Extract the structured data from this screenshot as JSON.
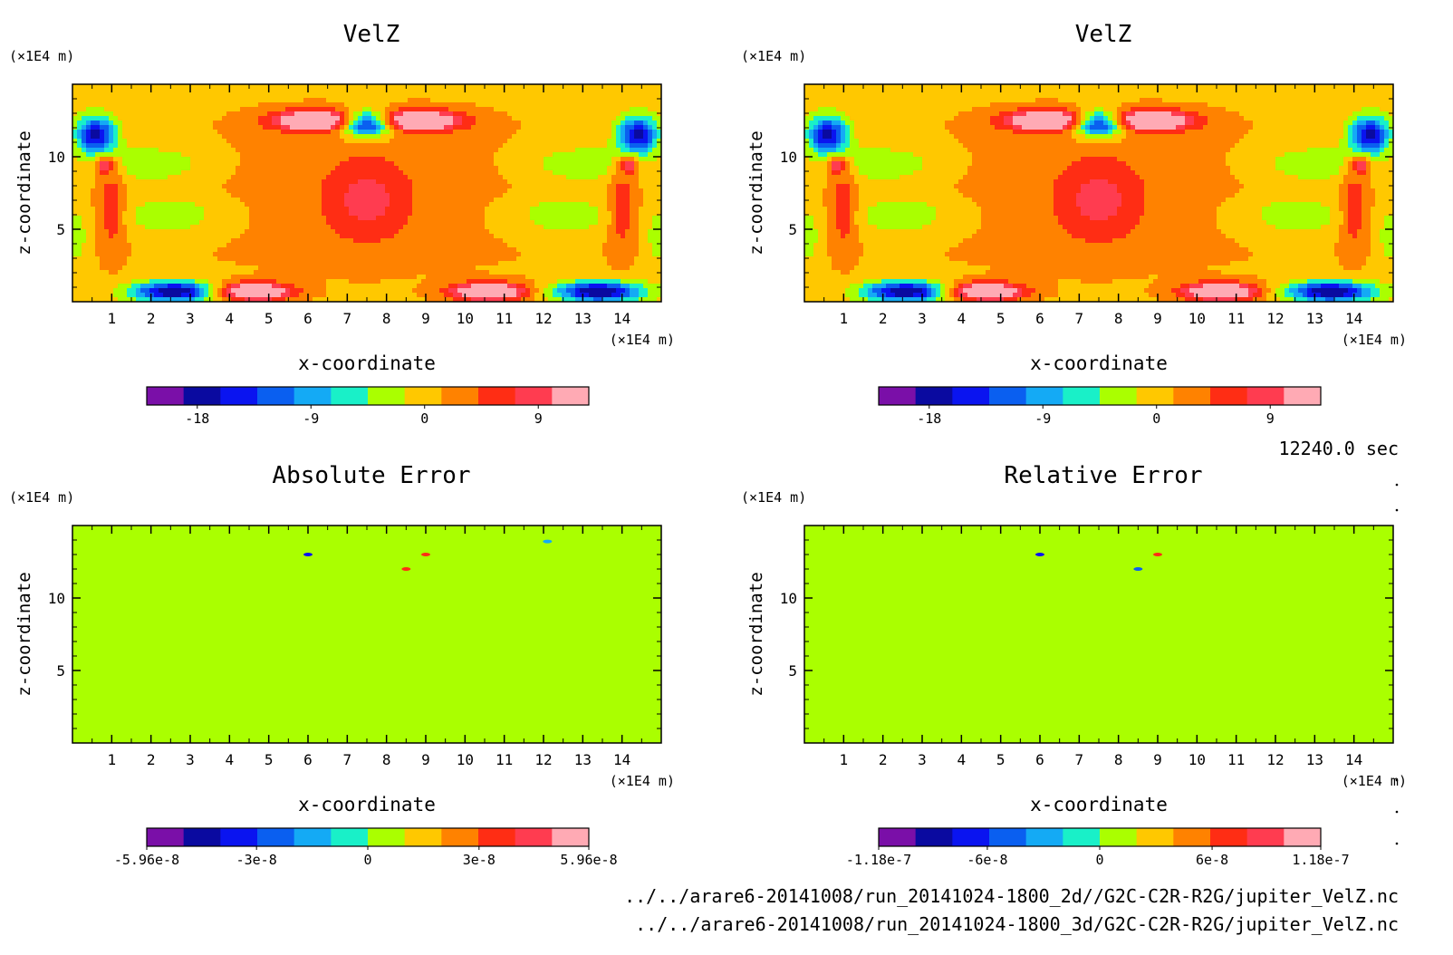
{
  "chart_data": [
    {
      "type": "heatmap",
      "title": "VelZ",
      "xlabel": "x-coordinate",
      "ylabel": "z-coordinate",
      "x_unit": "(×1E4 m)",
      "y_unit": "(×1E4 m)",
      "xlim": [
        0,
        15
      ],
      "ylim": [
        0,
        15
      ],
      "x_ticks": [
        "1",
        "2",
        "3",
        "4",
        "5",
        "6",
        "7",
        "8",
        "9",
        "10",
        "11",
        "12",
        "13",
        "14"
      ],
      "y_ticks": [
        "5",
        "10"
      ],
      "field": "velz",
      "colorbar": {
        "tick_labels": [
          "-18",
          "-9",
          "0",
          "9"
        ],
        "range": [
          -22,
          13
        ],
        "levels": 12
      }
    },
    {
      "type": "heatmap",
      "title": "VelZ",
      "xlabel": "x-coordinate",
      "ylabel": "z-coordinate",
      "x_unit": "(×1E4 m)",
      "y_unit": "(×1E4 m)",
      "xlim": [
        0,
        15
      ],
      "ylim": [
        0,
        15
      ],
      "x_ticks": [
        "1",
        "2",
        "3",
        "4",
        "5",
        "6",
        "7",
        "8",
        "9",
        "10",
        "11",
        "12",
        "13",
        "14"
      ],
      "y_ticks": [
        "5",
        "10"
      ],
      "field": "velz",
      "colorbar": {
        "tick_labels": [
          "-18",
          "-9",
          "0",
          "9"
        ],
        "range": [
          -22,
          13
        ],
        "levels": 12
      }
    },
    {
      "type": "heatmap",
      "title": "Absolute Error",
      "xlabel": "x-coordinate",
      "ylabel": "z-coordinate",
      "x_unit": "(×1E4 m)",
      "y_unit": "(×1E4 m)",
      "xlim": [
        0,
        15
      ],
      "ylim": [
        0,
        15
      ],
      "x_ticks": [
        "1",
        "2",
        "3",
        "4",
        "5",
        "6",
        "7",
        "8",
        "9",
        "10",
        "11",
        "12",
        "13",
        "14"
      ],
      "y_ticks": [
        "5",
        "10"
      ],
      "field": "abs_error",
      "colorbar": {
        "tick_labels": [
          "-5.96e-8",
          "-3e-8",
          "0",
          "3e-8",
          "5.96e-8"
        ],
        "range": [
          -5.96e-08,
          5.96e-08
        ],
        "levels": 12
      }
    },
    {
      "type": "heatmap",
      "title": "Relative Error",
      "xlabel": "x-coordinate",
      "ylabel": "z-coordinate",
      "x_unit": "(×1E4 m)",
      "y_unit": "(×1E4 m)",
      "xlim": [
        0,
        15
      ],
      "ylim": [
        0,
        15
      ],
      "x_ticks": [
        "1",
        "2",
        "3",
        "4",
        "5",
        "6",
        "7",
        "8",
        "9",
        "10",
        "11",
        "12",
        "13",
        "14"
      ],
      "y_ticks": [
        "5",
        "10"
      ],
      "field": "rel_error",
      "colorbar": {
        "tick_labels": [
          "-1.18e-7",
          "-6e-8",
          "0",
          "6e-8",
          "1.18e-7"
        ],
        "range": [
          -1.18e-07,
          1.18e-07
        ],
        "levels": 12
      }
    }
  ],
  "colormap": [
    "#7a0fa8",
    "#0a0aa0",
    "#0a14f0",
    "#0a5ff0",
    "#14aaf5",
    "#19f0c8",
    "#aaff00",
    "#ffc800",
    "#ff8200",
    "#ff2d14",
    "#ff3c50",
    "#ffaab4"
  ],
  "timestamp": "12240.0 sec",
  "file_paths": [
    "../../arare6-20141008/run_20141024-1800_2d//G2C-C2R-R2G/jupiter_VelZ.nc",
    "../../arare6-20141008/run_20141024-1800_3d/G2C-C2R-R2G/jupiter_VelZ.nc"
  ]
}
